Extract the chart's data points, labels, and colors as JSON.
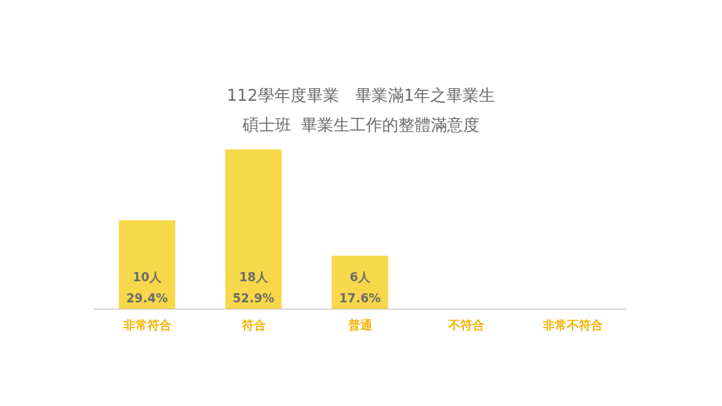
{
  "chart_data": {
    "type": "bar",
    "title": "112學年度畢業　畢業滿1年之畢業生",
    "subtitle": "碩士班  畢業生工作的整體滿意度",
    "categories": [
      "非常符合",
      "符合",
      "普通",
      "不符合",
      "非常不符合"
    ],
    "values": [
      10,
      18,
      6,
      0,
      0
    ],
    "value_labels": [
      "10人\n29.4%",
      "18人\n52.9%",
      "6人\n17.6%",
      null,
      null
    ],
    "color": "#f7d84a",
    "grid": false
  }
}
